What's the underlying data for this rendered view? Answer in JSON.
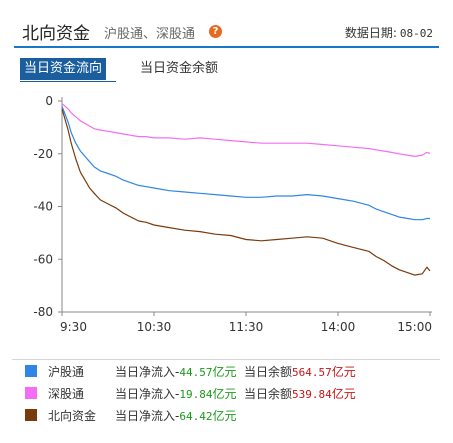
{
  "header": {
    "title": "北向资金",
    "subtitle": "沪股通、深股通",
    "help_icon": "?",
    "date_label": "数据日期:",
    "date_value": "08-02"
  },
  "tabs": [
    {
      "label": "当日资金流向",
      "active": true
    },
    {
      "label": "当日资金余额",
      "active": false
    }
  ],
  "legend": [
    {
      "name": "沪股通",
      "color": "#2f86e6",
      "flow_label": "当日净流入-",
      "flow_value": "44.57",
      "flow_unit": "亿元",
      "balance_label": "当日余额",
      "balance_value": "564.57",
      "balance_unit": "亿元"
    },
    {
      "name": "深股通",
      "color": "#f36ef5",
      "flow_label": "当日净流入-",
      "flow_value": "19.84",
      "flow_unit": "亿元",
      "balance_label": "当日余额",
      "balance_value": "539.84",
      "balance_unit": "亿元"
    },
    {
      "name": "北向资金",
      "color": "#7a3b0c",
      "flow_label": "当日净流入-",
      "flow_value": "64.42",
      "flow_unit": "亿元",
      "balance_label": "",
      "balance_value": "",
      "balance_unit": ""
    }
  ],
  "chart_data": {
    "type": "line",
    "title": "",
    "xlabel": "",
    "ylabel": "",
    "ylim": [
      -80,
      0
    ],
    "yticks": [
      "0",
      "-20",
      "-40",
      "-60",
      "-80"
    ],
    "xticks": [
      "9:30",
      "10:30",
      "11:30",
      "14:00",
      "15:00"
    ],
    "grid": false,
    "series": [
      {
        "name": "沪股通",
        "color": "#2f86e6",
        "x": [
          0,
          2,
          4,
          6,
          9,
          12,
          15,
          18,
          21,
          25,
          30,
          35,
          40,
          45,
          50,
          55,
          60,
          70,
          80,
          90,
          100,
          110,
          120,
          130,
          140,
          150,
          160,
          170,
          180,
          190,
          200,
          205,
          210,
          215,
          220,
          225,
          230,
          235,
          238,
          240
        ],
        "y": [
          -2,
          -5,
          -8,
          -12,
          -16,
          -19,
          -21,
          -23,
          -25,
          -26.5,
          -27.5,
          -28.5,
          -30,
          -31,
          -32,
          -32.5,
          -33,
          -34,
          -34.5,
          -35,
          -35.5,
          -36,
          -36.5,
          -36.5,
          -36,
          -36,
          -35.5,
          -36,
          -37,
          -38,
          -39.5,
          -41,
          -42,
          -43,
          -44,
          -44.5,
          -45,
          -45,
          -44.5,
          -44.57
        ]
      },
      {
        "name": "深股通",
        "color": "#f36ef5",
        "x": [
          0,
          2,
          4,
          6,
          9,
          12,
          15,
          18,
          21,
          25,
          30,
          35,
          40,
          45,
          50,
          55,
          60,
          70,
          80,
          90,
          100,
          110,
          120,
          130,
          140,
          150,
          160,
          170,
          180,
          190,
          200,
          205,
          210,
          215,
          220,
          225,
          230,
          235,
          238,
          240
        ],
        "y": [
          -1,
          -2,
          -3,
          -4.5,
          -6,
          -7.5,
          -8.5,
          -9.5,
          -10.5,
          -11,
          -11.5,
          -12,
          -12.5,
          -13,
          -13.5,
          -13.5,
          -14,
          -14,
          -14.5,
          -14,
          -14.5,
          -15,
          -15.5,
          -16,
          -16,
          -16,
          -16,
          -16.5,
          -17,
          -17.5,
          -18,
          -18.5,
          -19,
          -19.5,
          -20,
          -20.5,
          -21,
          -20.5,
          -19.5,
          -19.84
        ]
      },
      {
        "name": "北向资金",
        "color": "#7a3b0c",
        "x": [
          0,
          2,
          4,
          6,
          9,
          12,
          15,
          18,
          21,
          25,
          30,
          35,
          40,
          45,
          50,
          55,
          60,
          70,
          80,
          90,
          100,
          110,
          120,
          130,
          140,
          150,
          160,
          170,
          180,
          190,
          200,
          205,
          210,
          215,
          220,
          225,
          230,
          235,
          238,
          240
        ],
        "y": [
          -3,
          -7,
          -11,
          -16,
          -22,
          -27,
          -30,
          -33,
          -35,
          -37.5,
          -39,
          -40.5,
          -42.5,
          -44,
          -45.5,
          -46,
          -47,
          -48,
          -49,
          -49.5,
          -50.5,
          -51,
          -52.5,
          -53,
          -52.5,
          -52,
          -51.5,
          -52,
          -54,
          -55.5,
          -57,
          -59,
          -60.5,
          -62.5,
          -64,
          -65,
          -66,
          -65.5,
          -63,
          -64.42
        ]
      }
    ],
    "x_range": [
      0,
      240
    ]
  }
}
